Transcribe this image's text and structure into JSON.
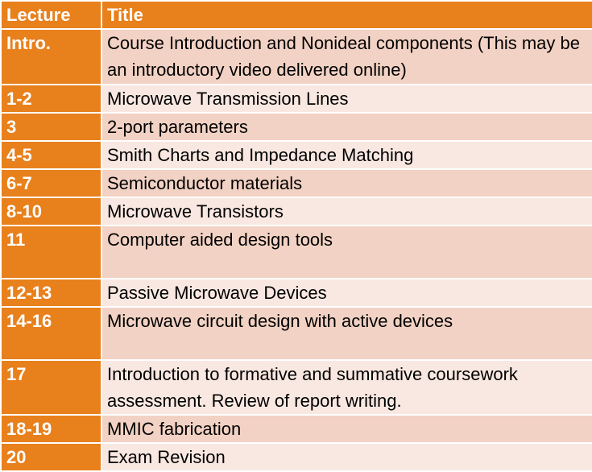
{
  "table": {
    "headers": [
      "Lecture",
      "Title"
    ],
    "rows": [
      {
        "lecture": "Intro.",
        "title": "Course Introduction and Nonideal components (This may be an introductory video delivered online)"
      },
      {
        "lecture": "1-2",
        "title": "Microwave Transmission Lines"
      },
      {
        "lecture": "3",
        "title": "2-port parameters"
      },
      {
        "lecture": "4-5",
        "title": "Smith Charts and Impedance Matching"
      },
      {
        "lecture": "6-7",
        "title": "Semiconductor materials"
      },
      {
        "lecture": "8-10",
        "title": "Microwave Transistors"
      },
      {
        "lecture": "11",
        "title": "Computer aided design tools"
      },
      {
        "lecture": "12-13",
        "title": "Passive Microwave Devices"
      },
      {
        "lecture": "14-16",
        "title": "Microwave circuit design with active devices"
      },
      {
        "lecture": "17",
        "title": "Introduction to formative and summative coursework assessment. Review of report writing."
      },
      {
        "lecture": "18-19",
        "title": "MMIC fabrication"
      },
      {
        "lecture": "20",
        "title": "Exam Revision"
      }
    ]
  },
  "colors": {
    "header": "#e8801c",
    "lecture_cell": "#e8801c",
    "title_dark": "#f2d2c4",
    "title_light": "#f9e8e1"
  }
}
